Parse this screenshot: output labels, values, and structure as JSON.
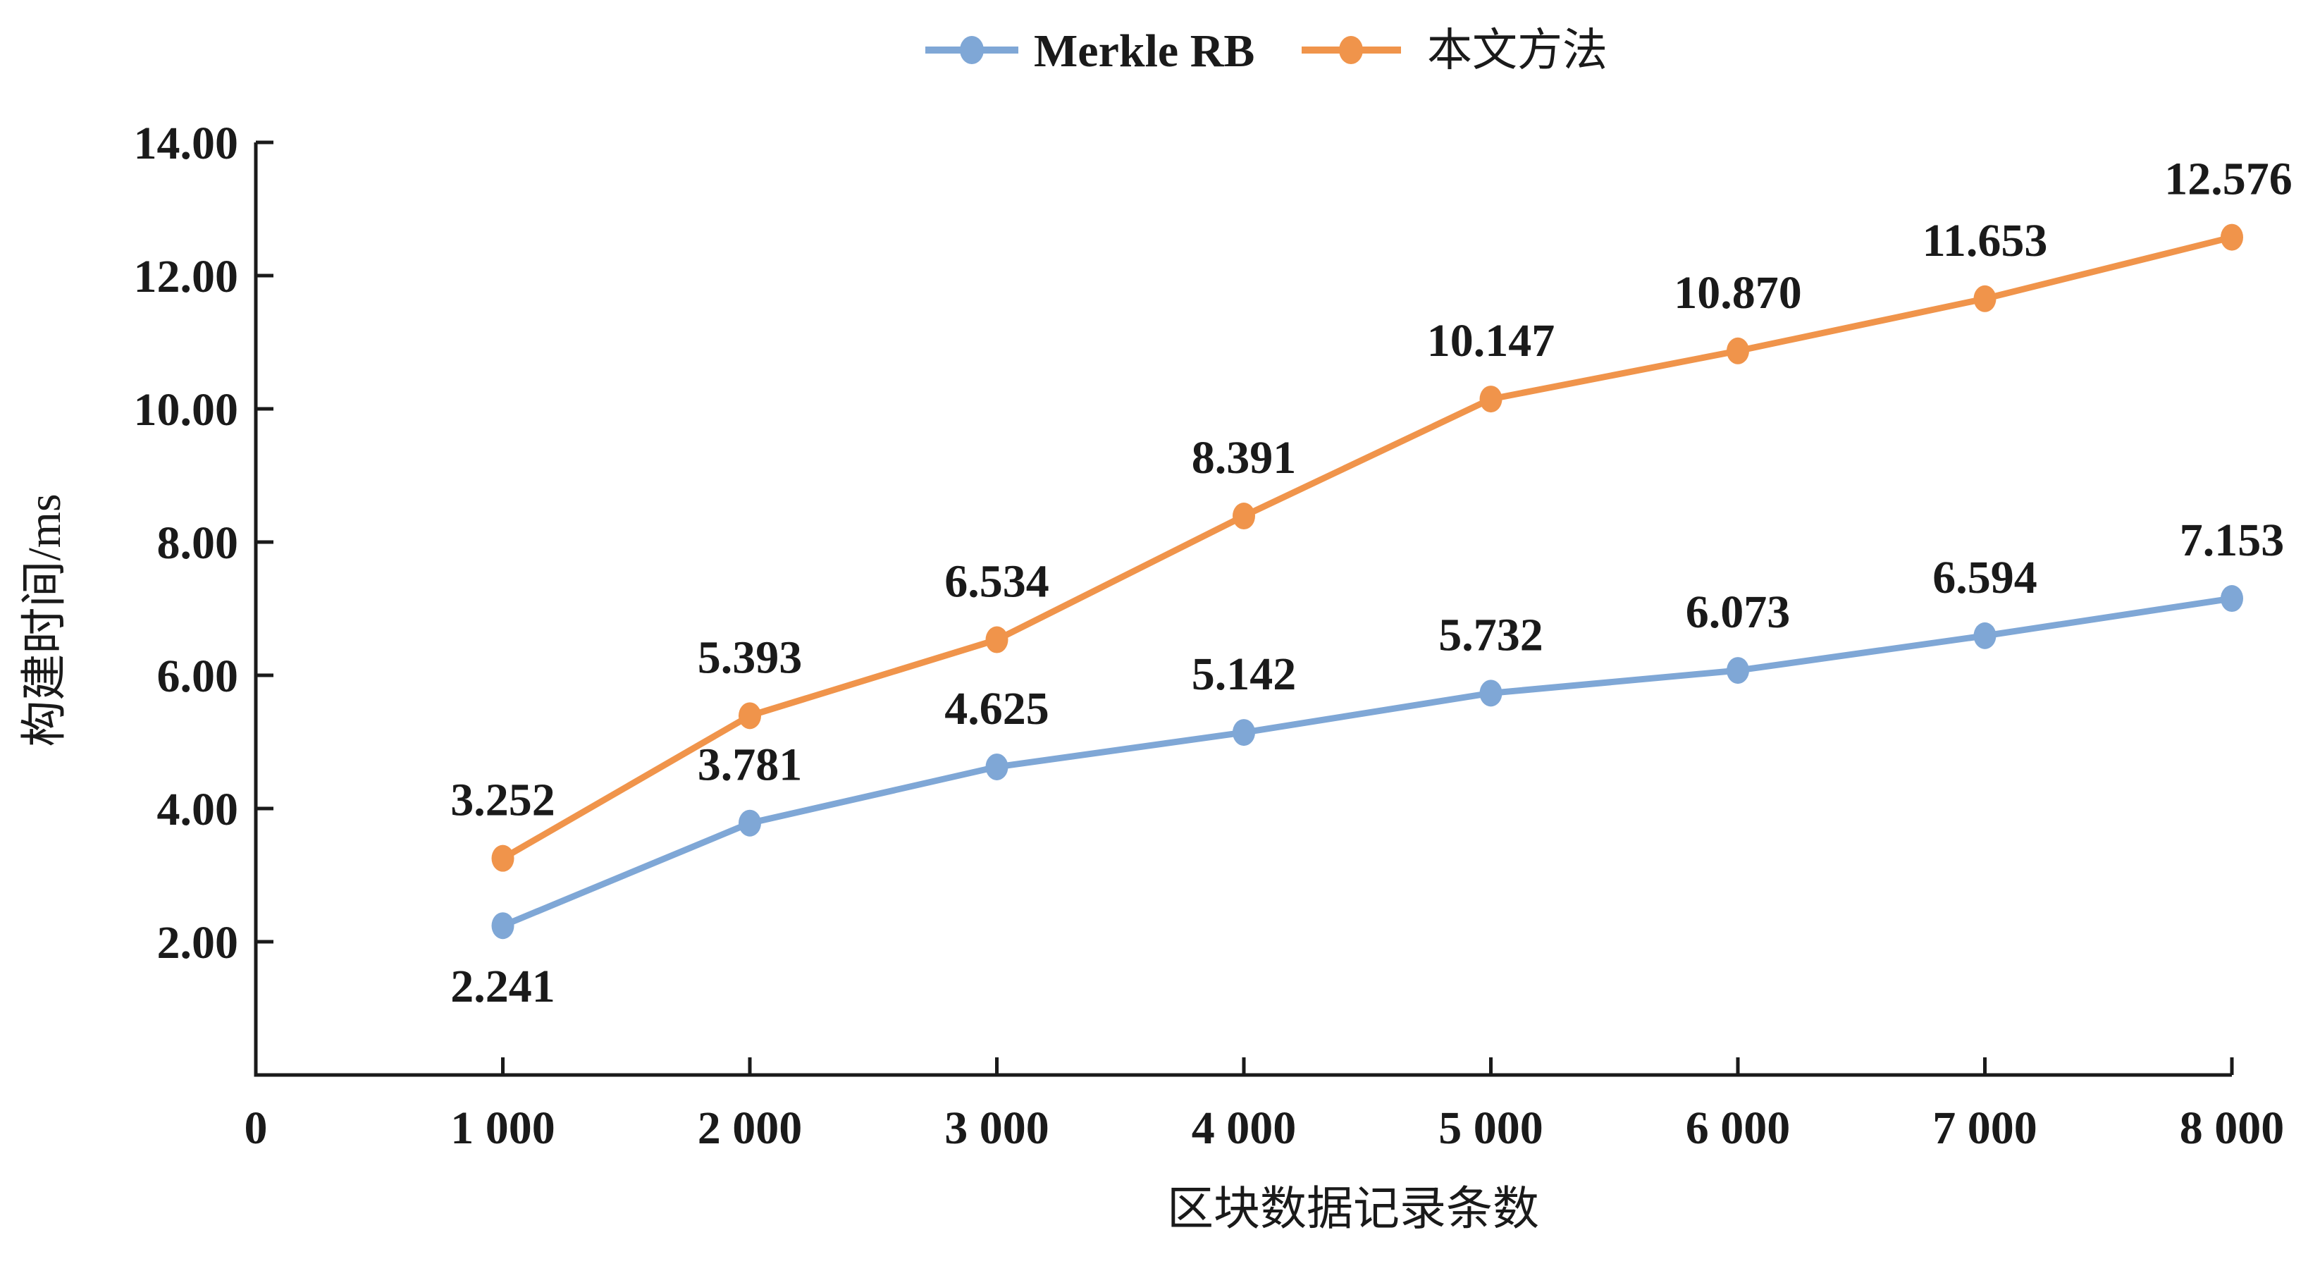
{
  "chart_data": {
    "type": "line",
    "title": "",
    "xlabel": "区块数据记录条数",
    "ylabel": "构建时间/ms",
    "x": [
      1000,
      2000,
      3000,
      4000,
      5000,
      6000,
      7000,
      8000
    ],
    "x_axis_tick_labels": [
      "0",
      "1 000",
      "2 000",
      "3 000",
      "4 000",
      "5 000",
      "6 000",
      "7 000",
      "8 000"
    ],
    "x_axis_tick_values": [
      0,
      1000,
      2000,
      3000,
      4000,
      5000,
      6000,
      7000,
      8000
    ],
    "y_axis_tick_labels": [
      "2.00",
      "4.00",
      "6.00",
      "8.00",
      "10.00",
      "12.00",
      "14.00"
    ],
    "y_axis_tick_values": [
      2,
      4,
      6,
      8,
      10,
      12,
      14
    ],
    "xlim": [
      0,
      8000
    ],
    "ylim": [
      0,
      14
    ],
    "grid": "off",
    "legend_position": "top-center",
    "axis_color": "#1a1a1a",
    "text_color": "#1a1a1a",
    "series": [
      {
        "name": "Merkle RB",
        "color": "#7FA7D6",
        "values": [
          2.241,
          3.781,
          4.625,
          5.142,
          5.732,
          6.073,
          6.594,
          7.153
        ],
        "point_labels": [
          "2.241",
          "3.781",
          "4.625",
          "5.142",
          "5.732",
          "6.073",
          "6.594",
          "7.153"
        ],
        "label_position_default": "above",
        "label_below_indices": [
          0
        ]
      },
      {
        "name": "本文方法",
        "color": "#F0944B",
        "values": [
          3.252,
          5.393,
          6.534,
          8.391,
          10.147,
          10.87,
          11.653,
          12.576
        ],
        "point_labels": [
          "3.252",
          "5.393",
          "6.534",
          "8.391",
          "10.147",
          "10.870",
          "11.653",
          "12.576"
        ],
        "label_position_default": "above",
        "label_below_indices": []
      }
    ]
  }
}
